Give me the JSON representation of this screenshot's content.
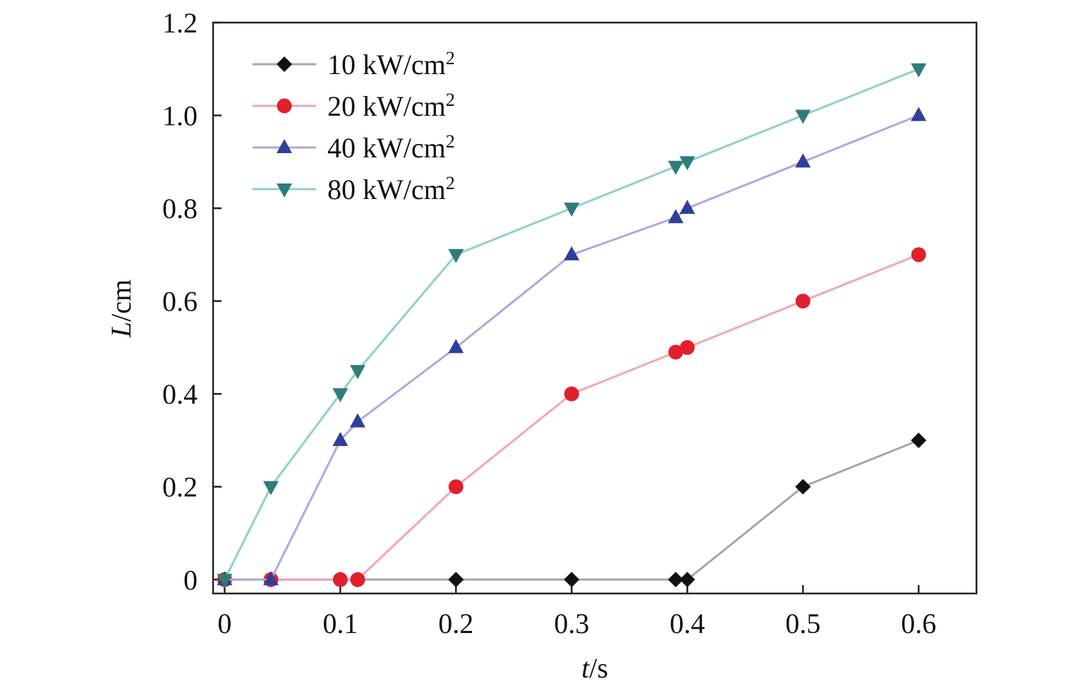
{
  "chart_data": {
    "type": "line",
    "title": "",
    "xlabel": {
      "var": "t",
      "unit": "/s"
    },
    "ylabel": {
      "var": "L",
      "unit": "/cm"
    },
    "xlim": [
      -0.01,
      0.65
    ],
    "ylim": [
      -0.03,
      1.2
    ],
    "x_ticks": [
      0,
      0.1,
      0.2,
      0.3,
      0.4,
      0.5,
      0.6
    ],
    "x_tick_labels": [
      "0",
      "0.1",
      "0.2",
      "0.3",
      "0.4",
      "0.5",
      "0.6"
    ],
    "y_ticks": [
      0,
      0.2,
      0.4,
      0.6,
      0.8,
      1.0,
      1.2
    ],
    "y_tick_labels": [
      "0",
      "0.2",
      "0.4",
      "0.6",
      "0.8",
      "1.0",
      "1.2"
    ],
    "grid": false,
    "legend_position": "top-left",
    "series": [
      {
        "name_main": "10 kW/cm",
        "name_sup": "2",
        "marker": "diamond",
        "line_color": "#a6a6a6",
        "marker_color": "#111111",
        "x": [
          0,
          0.04,
          0.1,
          0.115,
          0.2,
          0.3,
          0.39,
          0.4,
          0.5,
          0.6
        ],
        "y": [
          0,
          0,
          0,
          0,
          0,
          0,
          0,
          0,
          0.2,
          0.3
        ]
      },
      {
        "name_main": "20 kW/cm",
        "name_sup": "2",
        "marker": "circle",
        "line_color": "#f4a6ae",
        "marker_color": "#e0202c",
        "x": [
          0,
          0.04,
          0.1,
          0.115,
          0.2,
          0.3,
          0.39,
          0.4,
          0.5,
          0.6
        ],
        "y": [
          0,
          0,
          0,
          0,
          0.2,
          0.4,
          0.49,
          0.5,
          0.6,
          0.7
        ]
      },
      {
        "name_main": "40 kW/cm",
        "name_sup": "2",
        "marker": "triangle-up",
        "line_color": "#aaaade",
        "marker_color": "#2f3f9a",
        "x": [
          0,
          0.04,
          0.1,
          0.115,
          0.2,
          0.3,
          0.39,
          0.4,
          0.5,
          0.6
        ],
        "y": [
          0,
          0,
          0.3,
          0.34,
          0.5,
          0.7,
          0.78,
          0.8,
          0.9,
          1.0
        ]
      },
      {
        "name_main": "80 kW/cm",
        "name_sup": "2",
        "marker": "triangle-down",
        "line_color": "#8fd0c8",
        "marker_color": "#2e7d78",
        "x": [
          0,
          0.04,
          0.1,
          0.115,
          0.2,
          0.3,
          0.39,
          0.4,
          0.5,
          0.6
        ],
        "y": [
          0,
          0.2,
          0.4,
          0.45,
          0.7,
          0.8,
          0.89,
          0.9,
          1.0,
          1.1
        ]
      }
    ]
  }
}
